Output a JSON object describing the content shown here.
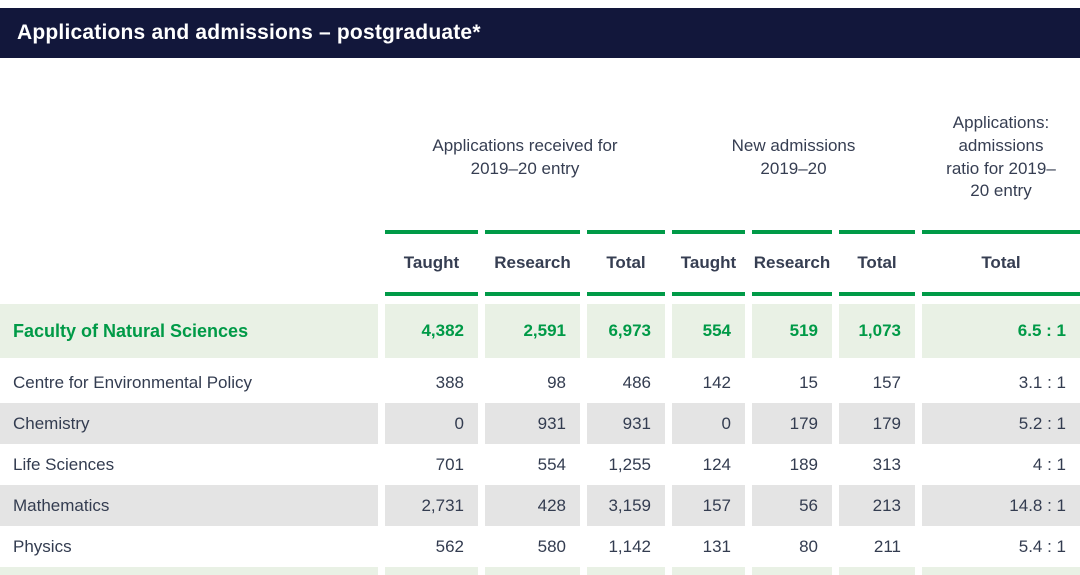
{
  "title_bar": {
    "title": "Applications and admissions – postgraduate*"
  },
  "colors": {
    "navy_bar": "#12173b",
    "accent_green": "#009a47",
    "highlight_row_bg": "#e9f1e5",
    "alt_row_bg": "#e4e4e4",
    "body_text": "#333c50"
  },
  "table": {
    "group_headers": {
      "applications": "Applications received for 2019–20 entry",
      "admissions": "New admissions 2019–20",
      "ratio": "Applications: admissions ratio for 2019–20 entry"
    },
    "column_headers": [
      "Taught",
      "Research",
      "Total",
      "Taught",
      "Research",
      "Total",
      "Total"
    ],
    "rows": [
      {
        "label": "Faculty of Natural Sciences",
        "highlight": true,
        "values": [
          "4,382",
          "2,591",
          "6,973",
          "554",
          "519",
          "1,073",
          "6.5 : 1"
        ]
      },
      {
        "label": "Centre for Environmental Policy",
        "highlight": false,
        "values": [
          "388",
          "98",
          "486",
          "142",
          "15",
          "157",
          "3.1 : 1"
        ]
      },
      {
        "label": "Chemistry",
        "highlight": false,
        "values": [
          "0",
          "931",
          "931",
          "0",
          "179",
          "179",
          "5.2 : 1"
        ]
      },
      {
        "label": "Life Sciences",
        "highlight": false,
        "values": [
          "701",
          "554",
          "1,255",
          "124",
          "189",
          "313",
          "4 : 1"
        ]
      },
      {
        "label": "Mathematics",
        "highlight": false,
        "values": [
          "2,731",
          "428",
          "3,159",
          "157",
          "56",
          "213",
          "14.8 : 1"
        ]
      },
      {
        "label": "Physics",
        "highlight": false,
        "values": [
          "562",
          "580",
          "1,142",
          "131",
          "80",
          "211",
          "5.4 : 1"
        ]
      }
    ]
  }
}
